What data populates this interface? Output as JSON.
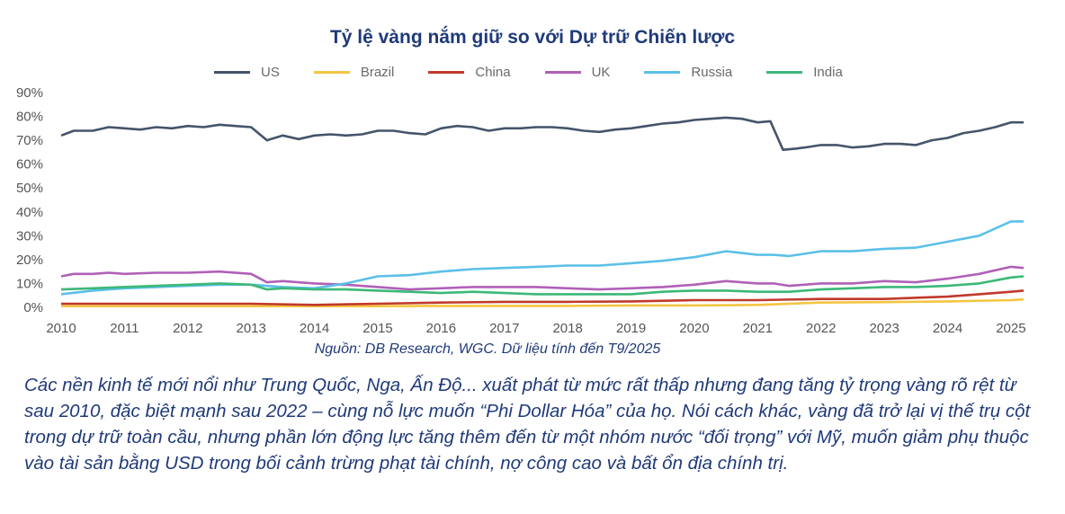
{
  "title": "Tỷ lệ vàng nắm giữ so với Dự trữ Chiến lược",
  "source": "Nguồn: DB Research, WGC. Dữ liệu tính đến T9/2025",
  "caption": "Các nền kinh tế mới nổi như Trung Quốc, Nga, Ấn Độ... xuất phát từ mức rất thấp nhưng đang tăng tỷ trọng vàng rõ rệt từ sau 2010, đặc biệt mạnh sau 2022 – cùng nỗ lực muốn “Phi Dollar Hóa” của họ. Nói cách khác, vàng đã trở lại vị thế trụ cột trong dự trữ toàn cầu, nhưng phần lớn động lực tăng thêm đến từ một nhóm nước “đối trọng” với Mỹ, muốn giảm phụ thuộc vào tài sản bằng USD trong bối cảnh trừng phạt tài chính, nợ công cao và bất ổn địa chính trị.",
  "chart_data": {
    "type": "line",
    "title": "Tỷ lệ vàng nắm giữ so với Dự trữ Chiến lược",
    "xlim": [
      2010,
      2025.2
    ],
    "ylim": [
      0,
      90
    ],
    "x_ticks": [
      "2010",
      "2011",
      "2012",
      "2013",
      "2014",
      "2015",
      "2016",
      "2017",
      "2018",
      "2019",
      "2020",
      "2021",
      "2022",
      "2023",
      "2024",
      "2025"
    ],
    "y_ticks": [
      "0%",
      "10%",
      "20%",
      "30%",
      "40%",
      "50%",
      "60%",
      "70%",
      "80%",
      "90%"
    ],
    "legend_position": "top",
    "grid": false,
    "series": [
      {
        "name": "US",
        "color": "#44546a",
        "x": [
          2010,
          2010.2,
          2010.5,
          2010.75,
          2011,
          2011.25,
          2011.5,
          2011.75,
          2012,
          2012.25,
          2012.5,
          2012.75,
          2013,
          2013.25,
          2013.5,
          2013.75,
          2014,
          2014.25,
          2014.5,
          2014.75,
          2015,
          2015.25,
          2015.5,
          2015.75,
          2016,
          2016.25,
          2016.5,
          2016.75,
          2017,
          2017.25,
          2017.5,
          2017.75,
          2018,
          2018.25,
          2018.5,
          2018.75,
          2019,
          2019.25,
          2019.5,
          2019.75,
          2020,
          2020.25,
          2020.5,
          2020.75,
          2021,
          2021.2,
          2021.4,
          2021.6,
          2021.75,
          2022,
          2022.25,
          2022.5,
          2022.75,
          2023,
          2023.25,
          2023.5,
          2023.75,
          2024,
          2024.25,
          2024.5,
          2024.75,
          2025,
          2025.2
        ],
        "y": [
          72,
          74,
          74,
          75.5,
          75,
          74.5,
          75.5,
          75,
          76,
          75.5,
          76.5,
          76,
          75.5,
          70,
          72,
          70.5,
          72,
          72.5,
          72,
          72.5,
          74,
          74,
          73,
          72.5,
          75,
          76,
          75.5,
          74,
          75,
          75,
          75.5,
          75.5,
          75,
          74,
          73.5,
          74.5,
          75,
          76,
          77,
          77.5,
          78.5,
          79,
          79.5,
          79,
          77.5,
          78,
          66,
          66.5,
          67,
          68,
          68,
          67,
          67.5,
          68.5,
          68.5,
          68,
          70,
          71,
          73,
          74,
          75.5,
          77.5,
          77.5
        ]
      },
      {
        "name": "Brazil",
        "color": "#f4c542",
        "x": [
          2010,
          2011,
          2012,
          2013,
          2014,
          2015,
          2016,
          2017,
          2018,
          2019,
          2020,
          2021,
          2022,
          2023,
          2024,
          2025,
          2025.2
        ],
        "y": [
          0.5,
          0.5,
          0.5,
          0.5,
          0.5,
          0.5,
          0.6,
          0.6,
          0.6,
          0.8,
          0.8,
          1,
          2,
          2.2,
          2.5,
          3,
          3.3
        ]
      },
      {
        "name": "China",
        "color": "#c0392b",
        "x": [
          2010,
          2011,
          2012,
          2013,
          2014,
          2015,
          2016,
          2017,
          2018,
          2019,
          2020,
          2021,
          2022,
          2023,
          2024,
          2024.5,
          2025,
          2025.2
        ],
        "y": [
          1.5,
          1.5,
          1.5,
          1.5,
          1,
          1.5,
          2,
          2.3,
          2.3,
          2.5,
          3,
          3,
          3.5,
          3.5,
          4.5,
          5.5,
          6.5,
          7
        ]
      },
      {
        "name": "UK",
        "color": "#b060b8",
        "x": [
          2010,
          2010.2,
          2010.5,
          2010.75,
          2011,
          2011.5,
          2012,
          2012.5,
          2013,
          2013.25,
          2013.5,
          2014,
          2014.5,
          2015,
          2015.5,
          2016,
          2016.5,
          2017,
          2017.5,
          2018,
          2018.5,
          2019,
          2019.5,
          2020,
          2020.5,
          2021,
          2021.25,
          2021.5,
          2022,
          2022.5,
          2023,
          2023.5,
          2024,
          2024.5,
          2025,
          2025.2
        ],
        "y": [
          13,
          14,
          14,
          14.5,
          14,
          14.5,
          14.5,
          15,
          14,
          10.5,
          11,
          10,
          9.5,
          8.5,
          7.5,
          8,
          8.5,
          8.5,
          8.5,
          8,
          7.5,
          8,
          8.5,
          9.5,
          11,
          10,
          10,
          9,
          10,
          10,
          11,
          10.5,
          12,
          14,
          17,
          16.5
        ]
      },
      {
        "name": "Russia",
        "color": "#5bc0e8",
        "x": [
          2010,
          2010.5,
          2011,
          2011.5,
          2012,
          2012.5,
          2013,
          2013.5,
          2014,
          2014.5,
          2015,
          2015.5,
          2016,
          2016.5,
          2017,
          2017.5,
          2018,
          2018.5,
          2019,
          2019.5,
          2020,
          2020.5,
          2021,
          2021.25,
          2021.5,
          2022,
          2022.5,
          2023,
          2023.5,
          2024,
          2024.5,
          2025,
          2025.2
        ],
        "y": [
          5.5,
          7,
          8,
          8.5,
          9,
          9.5,
          9.5,
          8.5,
          8,
          10,
          13,
          13.5,
          15,
          16,
          16.5,
          17,
          17.5,
          17.5,
          18.5,
          19.5,
          21,
          23.5,
          22,
          22,
          21.5,
          23.5,
          23.5,
          24.5,
          25,
          27.5,
          30,
          36,
          36
        ]
      },
      {
        "name": "India",
        "color": "#3cb878",
        "x": [
          2010,
          2010.5,
          2011,
          2011.5,
          2012,
          2012.5,
          2013,
          2013.25,
          2013.5,
          2014,
          2014.5,
          2015,
          2015.5,
          2016,
          2016.5,
          2017,
          2017.5,
          2018,
          2018.5,
          2019,
          2019.5,
          2020,
          2020.5,
          2021,
          2021.5,
          2022,
          2022.5,
          2023,
          2023.5,
          2024,
          2024.5,
          2025,
          2025.2
        ],
        "y": [
          7.5,
          8,
          8.5,
          9,
          9.5,
          10,
          9.5,
          7.5,
          8,
          7.5,
          7.5,
          7,
          6.5,
          6,
          6.5,
          6,
          5.5,
          5.5,
          5.5,
          5.5,
          6.5,
          7,
          7,
          6.5,
          6.5,
          7.5,
          8,
          8.5,
          8.5,
          9,
          10,
          12.5,
          13
        ]
      }
    ]
  }
}
